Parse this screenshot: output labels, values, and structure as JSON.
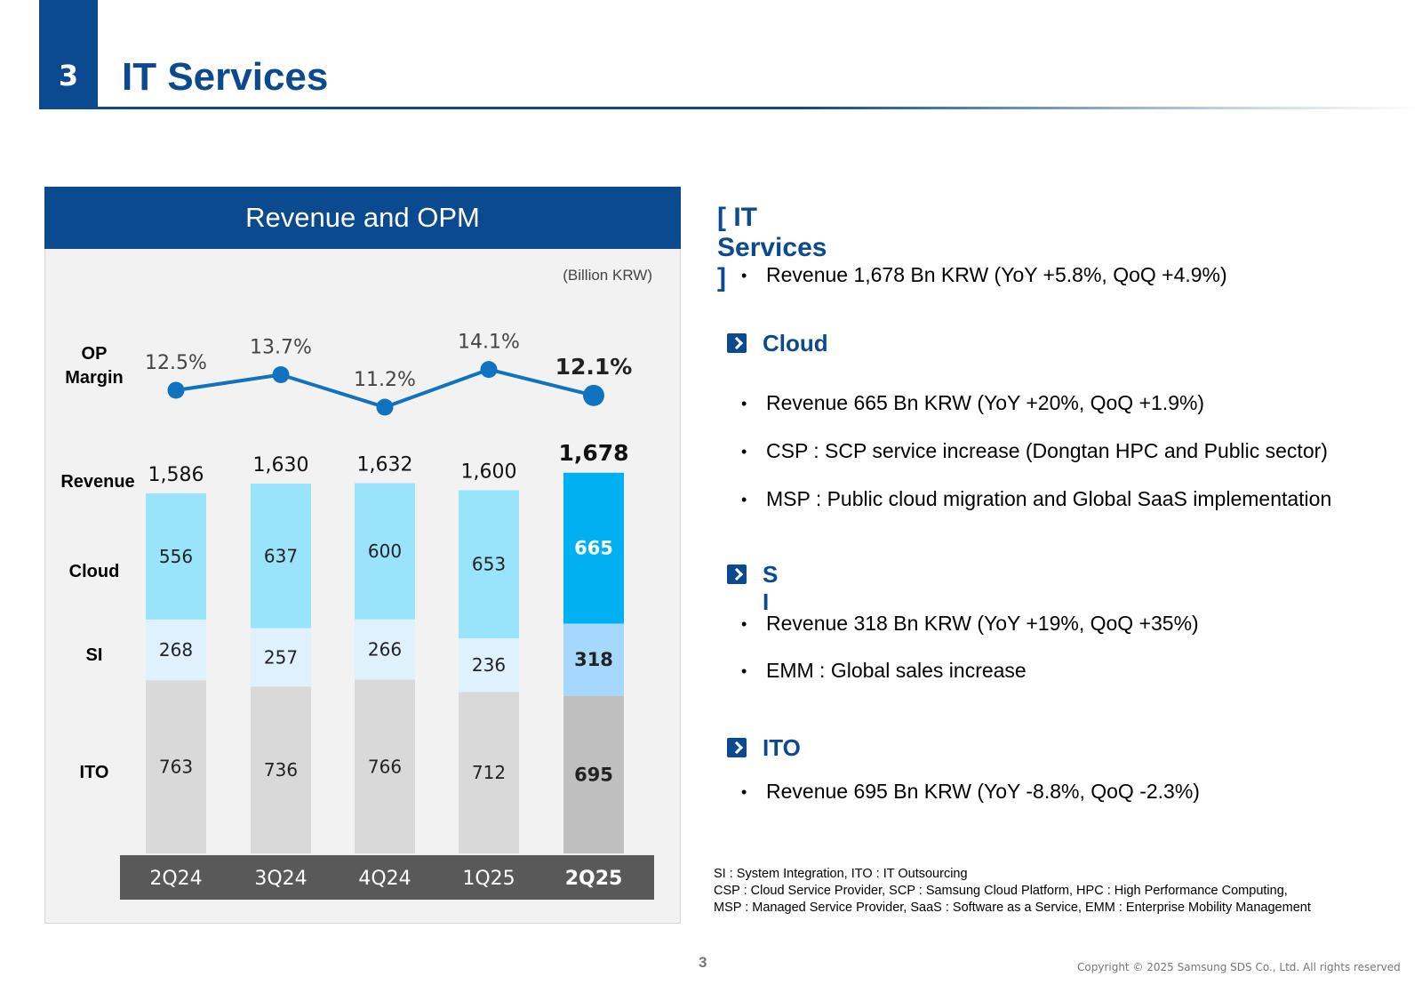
{
  "header": {
    "section_number": "3",
    "title": "IT Services"
  },
  "panel": {
    "title": "Revenue and OPM",
    "unit": "(Billion KRW)"
  },
  "chart_data": {
    "type": "bar",
    "stacked": true,
    "categories": [
      "2Q24",
      "3Q24",
      "4Q24",
      "1Q25",
      "2Q25"
    ],
    "row_labels": {
      "op_margin": [
        "OP",
        "Margin"
      ],
      "revenue": "Revenue",
      "cloud": "Cloud",
      "si": "SI",
      "ito": "ITO"
    },
    "series": [
      {
        "name": "ITO",
        "values": [
          763,
          736,
          766,
          712,
          695
        ]
      },
      {
        "name": "SI",
        "values": [
          268,
          257,
          266,
          236,
          318
        ]
      },
      {
        "name": "Cloud",
        "values": [
          556,
          637,
          600,
          653,
          665
        ]
      }
    ],
    "totals": [
      1586,
      1630,
      1632,
      1600,
      1678
    ],
    "totals_labels": [
      "1,586",
      "1,630",
      "1,632",
      "1,600",
      "1,678"
    ],
    "op_margin": {
      "type": "line",
      "values": [
        12.5,
        13.7,
        11.2,
        14.1,
        12.1
      ],
      "labels": [
        "12.5%",
        "13.7%",
        "11.2%",
        "14.1%",
        "12.1%"
      ]
    },
    "highlight_index": 4,
    "colors": {
      "cloud": "#99e3fb",
      "si": "#dff1fd",
      "ito": "#d9d9d9",
      "cloud_hl": "#00b0f0",
      "si_hl": "#a6d8fd",
      "ito_hl": "#bfbfbf",
      "line": "#1173bf",
      "axis_bar": "#595959"
    }
  },
  "right": {
    "heading": "[ IT Services ]",
    "summary": "Revenue 1,678 Bn KRW (YoY +5.8%, QoQ +4.9%)",
    "cloud": {
      "title": "Cloud",
      "icon": "chevron-right-icon",
      "bullets": [
        "Revenue 665 Bn KRW (YoY +20%, QoQ +1.9%)",
        "CSP : SCP service increase (Dongtan HPC and Public sector)",
        "MSP : Public cloud migration and Global SaaS implementation"
      ]
    },
    "si": {
      "title": "S I",
      "icon": "chevron-right-icon",
      "bullets": [
        "Revenue 318 Bn KRW (YoY +19%, QoQ +35%)",
        "EMM : Global sales increase"
      ]
    },
    "ito": {
      "title": "ITO",
      "icon": "chevron-right-icon",
      "bullets": [
        "Revenue 695 Bn KRW (YoY -8.8%, QoQ -2.3%)"
      ]
    },
    "notes": [
      "SI : System Integration, ITO : IT Outsourcing",
      "CSP : Cloud Service Provider, SCP : Samsung Cloud Platform, HPC : High Performance Computing,",
      "MSP : Managed Service Provider, SaaS : Software as a Service, EMM : Enterprise Mobility Management"
    ]
  },
  "footer": {
    "page": "3",
    "copyright": "Copyright © 2025 Samsung SDS Co., Ltd. All rights reserved"
  }
}
